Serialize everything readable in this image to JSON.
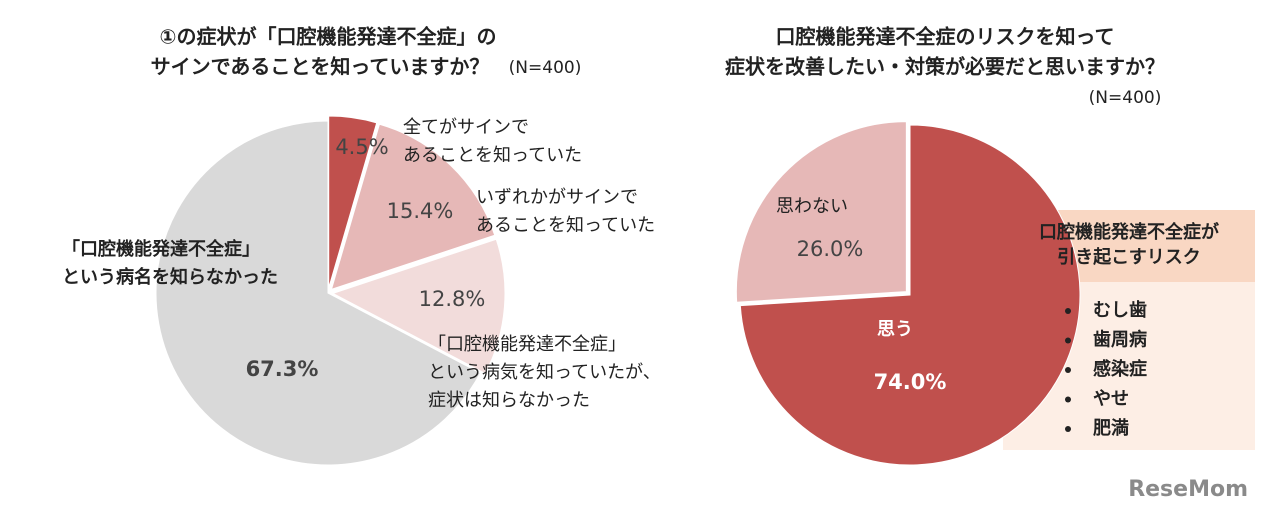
{
  "chart_data": [
    {
      "type": "pie",
      "title": [
        "①の症状が「口腔機能発達不全症」の",
        "サインであることを知っていますか？"
      ],
      "subtitle": "(N=400)",
      "categories": [
        [
          "全てがサインで",
          "あることを知っていた"
        ],
        [
          "いずれかがサインで",
          "あることを知っていた"
        ],
        [
          "「口腔機能発達不全症」",
          "という病気を知っていたが、",
          "症状は知らなかった"
        ],
        [
          "「口腔機能発達不全症」",
          "という病名を知らなかった"
        ]
      ],
      "values": [
        4.5,
        15.4,
        12.8,
        67.3
      ],
      "value_labels": [
        "4.5%",
        "15.4%",
        "12.8%",
        "67.3%"
      ],
      "colors": [
        "#c0504d",
        "#e6b8b7",
        "#f2dcdb",
        "#d9d9d9"
      ]
    },
    {
      "type": "pie",
      "title": [
        "口腔機能発達不全症のリスクを知って",
        "症状を改善したい・対策が必要だと思いますか？"
      ],
      "subtitle": "(N=400)",
      "categories": [
        [
          "思う"
        ],
        [
          "思わない"
        ]
      ],
      "values": [
        74.0,
        26.0
      ],
      "value_labels": [
        "74.0%",
        "26.0%"
      ],
      "colors": [
        "#c0504d",
        "#e6b8b7"
      ],
      "risk_box": {
        "title": [
          "口腔機能発達不全症が",
          "引き起こすリスク"
        ],
        "items": [
          "むし歯",
          "歯周病",
          "感染症",
          "やせ",
          "肥満"
        ]
      }
    }
  ],
  "watermark": "ReseMom"
}
